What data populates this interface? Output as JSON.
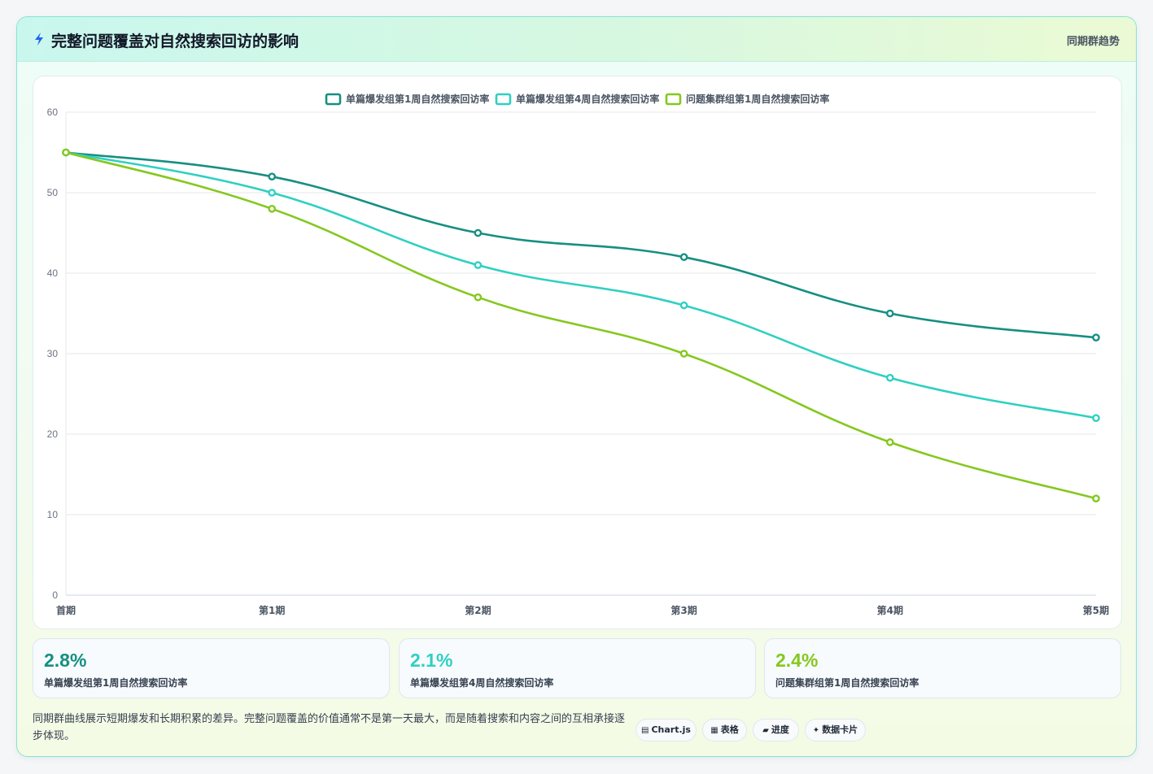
{
  "header": {
    "title": "完整问题覆盖对自然搜索回访的影响",
    "tag": "同期群趋势",
    "icon": "lightning-icon"
  },
  "chart_data": {
    "type": "line",
    "categories": [
      "首期",
      "第1期",
      "第2期",
      "第3期",
      "第4期",
      "第5期"
    ],
    "series": [
      {
        "name": "单篇爆发组第1周自然搜索回访率",
        "color": "#168f82",
        "values": [
          55,
          52,
          45,
          42,
          35,
          32
        ]
      },
      {
        "name": "单篇爆发组第4周自然搜索回访率",
        "color": "#2fd0c2",
        "values": [
          55,
          50,
          41,
          36,
          27,
          22
        ]
      },
      {
        "name": "问题集群组第1周自然搜索回访率",
        "color": "#84c81e",
        "values": [
          55,
          48,
          37,
          30,
          19,
          12
        ]
      }
    ],
    "ylim": [
      0,
      60
    ],
    "yticks": [
      0,
      10,
      20,
      30,
      40,
      50,
      60
    ],
    "legend": "top-center",
    "grid": true
  },
  "stats": [
    {
      "value": "2.8%",
      "label": "单篇爆发组第1周自然搜索回访率",
      "color": "#168f82"
    },
    {
      "value": "2.1%",
      "label": "单篇爆发组第4周自然搜索回访率",
      "color": "#2fd0c2"
    },
    {
      "value": "2.4%",
      "label": "问题集群组第1周自然搜索回访率",
      "color": "#84c81e"
    }
  ],
  "footnote": "同期群曲线展示短期爆发和长期积累的差异。完整问题覆盖的价值通常不是第一天最大，而是随着搜索和内容之间的互相承接逐步体现。",
  "chips": [
    {
      "icon": "▤",
      "label": "Chart.js"
    },
    {
      "icon": "▦",
      "label": "表格"
    },
    {
      "icon": "▰",
      "label": "进度"
    },
    {
      "icon": "✦",
      "label": "数据卡片"
    }
  ]
}
